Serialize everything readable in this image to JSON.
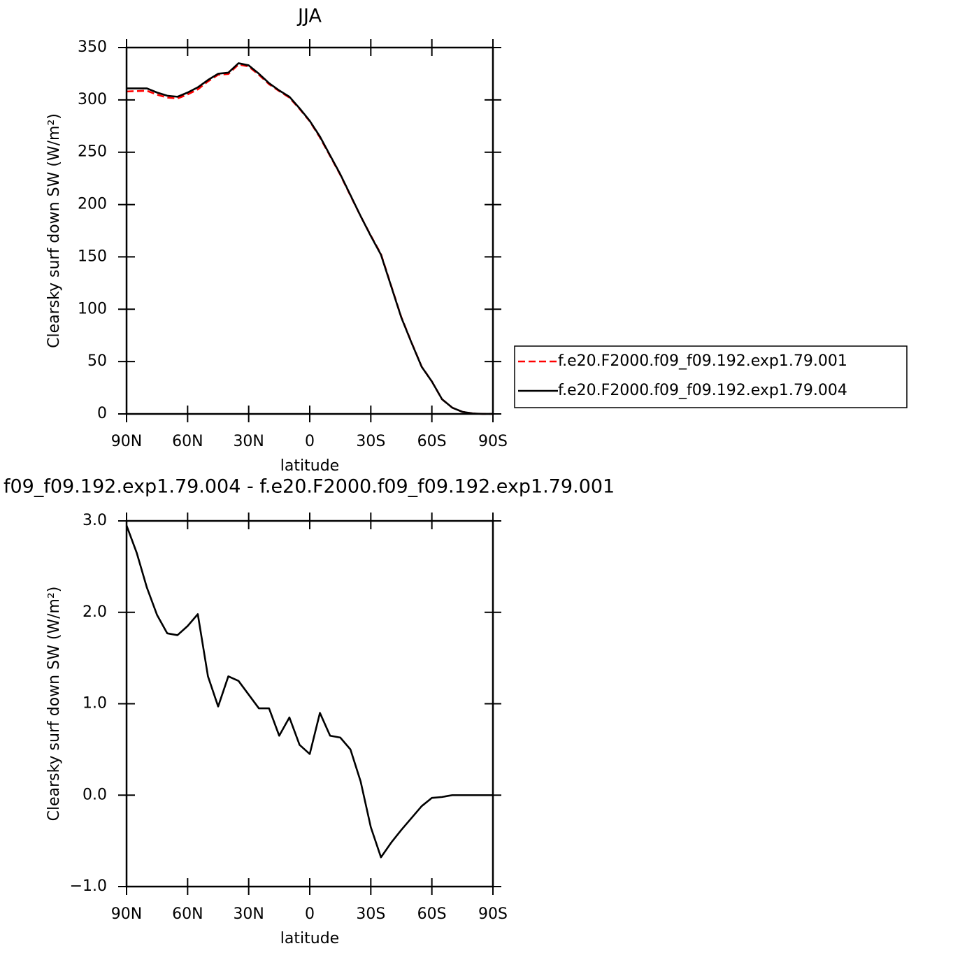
{
  "chart_data": [
    {
      "type": "line",
      "title": "JJA",
      "xlabel": "latitude",
      "ylabel": "Clearsky surf down SW (W/m²)",
      "x": [
        90,
        85,
        80,
        75,
        70,
        65,
        60,
        55,
        50,
        45,
        40,
        35,
        30,
        25,
        20,
        15,
        10,
        5,
        0,
        -5,
        -10,
        -15,
        -20,
        -25,
        -30,
        -35,
        -40,
        -45,
        -50,
        -55,
        -60,
        -65,
        -70,
        -75,
        -80,
        -85,
        -90
      ],
      "xlim": [
        90,
        -90
      ],
      "xticks": [
        {
          "value": 90,
          "label": "90N"
        },
        {
          "value": 60,
          "label": "60N"
        },
        {
          "value": 30,
          "label": "30N"
        },
        0,
        {
          "value": -30,
          "label": "30S"
        },
        {
          "value": -60,
          "label": "60S"
        },
        {
          "value": -90,
          "label": "90S"
        }
      ],
      "ylim": [
        0,
        350
      ],
      "yticks": [
        0,
        50,
        100,
        150,
        200,
        250,
        300,
        350
      ],
      "legend": "right",
      "series": [
        {
          "name": "f.e20.F2000.f09_f09.192.exp1.79.001",
          "color": "#ff0000",
          "linestyle": "dashed",
          "values": [
            308,
            308.4,
            308.7,
            305,
            302.2,
            301.3,
            305.2,
            310,
            317.7,
            324,
            324.7,
            333.8,
            331.9,
            324,
            315,
            308.4,
            302.2,
            291.4,
            279.6,
            264.1,
            246.4,
            228.4,
            208.5,
            188.9,
            170.4,
            152.7,
            122.5,
            92.4,
            68.3,
            45.1,
            31,
            14,
            6,
            2,
            0.5,
            0,
            0
          ]
        },
        {
          "name": "f.e20.F2000.f09_f09.192.exp1.79.004",
          "color": "#000000",
          "linestyle": "solid",
          "values": [
            311,
            311,
            311,
            307,
            304,
            303,
            307,
            312,
            319,
            325,
            326,
            335,
            333,
            325,
            316,
            309,
            303,
            292,
            280,
            265,
            247,
            229,
            209,
            189,
            170,
            152,
            122,
            92,
            68,
            45,
            31,
            14,
            6,
            2,
            0.5,
            0,
            0
          ]
        }
      ]
    },
    {
      "type": "line",
      "title": "f09_f09.192.exp1.79.004 - f.e20.F2000.f09_f09.192.exp1.79.001",
      "xlabel": "latitude",
      "ylabel": "Clearsky surf down SW (W/m²)",
      "x": [
        90,
        85,
        80,
        75,
        70,
        65,
        60,
        55,
        50,
        45,
        40,
        35,
        30,
        25,
        20,
        15,
        10,
        5,
        0,
        -5,
        -10,
        -15,
        -20,
        -25,
        -30,
        -35,
        -40,
        -45,
        -50,
        -55,
        -60,
        -65,
        -70,
        -75,
        -80,
        -85,
        -90
      ],
      "xlim": [
        90,
        -90
      ],
      "xticks": [
        {
          "value": 90,
          "label": "90N"
        },
        {
          "value": 60,
          "label": "60N"
        },
        {
          "value": 30,
          "label": "30N"
        },
        0,
        {
          "value": -30,
          "label": "30S"
        },
        {
          "value": -60,
          "label": "60S"
        },
        {
          "value": -90,
          "label": "90S"
        }
      ],
      "ylim": [
        -1,
        3
      ],
      "yticks": [
        {
          "value": -1,
          "label": "−1.0"
        },
        {
          "value": 0,
          "label": "0.0"
        },
        {
          "value": 1,
          "label": "1.0"
        },
        {
          "value": 2,
          "label": "2.0"
        },
        {
          "value": 3,
          "label": "3.0"
        }
      ],
      "series": [
        {
          "color": "#000000",
          "linestyle": "solid",
          "values": [
            2.95,
            2.65,
            2.27,
            1.97,
            1.77,
            1.75,
            1.85,
            1.98,
            1.3,
            0.97,
            1.3,
            1.25,
            1.1,
            0.95,
            0.95,
            0.65,
            0.85,
            0.55,
            0.45,
            0.9,
            0.65,
            0.63,
            0.5,
            0.15,
            -0.35,
            -0.68,
            -0.52,
            -0.38,
            -0.25,
            -0.12,
            -0.03,
            -0.02,
            0,
            0,
            0,
            0,
            0
          ]
        }
      ]
    }
  ]
}
